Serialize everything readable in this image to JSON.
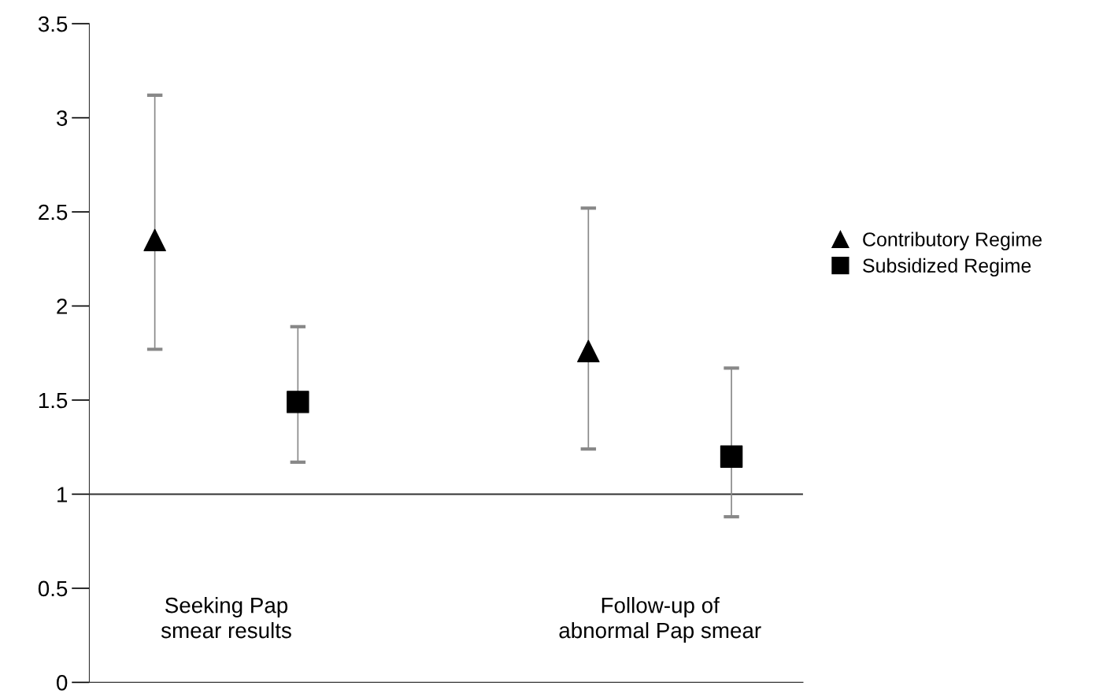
{
  "chart_data": {
    "type": "scatter",
    "categories": [
      "Seeking Pap\nsmear results",
      "Follow-up of\nabnormal Pap smear"
    ],
    "series": [
      {
        "name": "Contributory Regime",
        "color": "#000000",
        "marker": "triangle",
        "values": [
          2.35,
          1.76
        ],
        "errors": [
          [
            1.77,
            3.12
          ],
          [
            1.24,
            2.52
          ]
        ]
      },
      {
        "name": "Subsidized Regime",
        "color": "#000000",
        "marker": "square",
        "values": [
          1.49,
          1.2
        ],
        "errors": [
          [
            1.17,
            1.89
          ],
          [
            0.88,
            1.67
          ]
        ]
      }
    ],
    "ylim": [
      0,
      3.5
    ],
    "yticks": [
      0,
      0.5,
      1,
      1.5,
      2,
      2.5,
      3,
      3.5
    ],
    "ref_lines": [
      {
        "axis": "y",
        "value": 1,
        "color": "#333333"
      }
    ],
    "grid": false,
    "legend": "right"
  }
}
